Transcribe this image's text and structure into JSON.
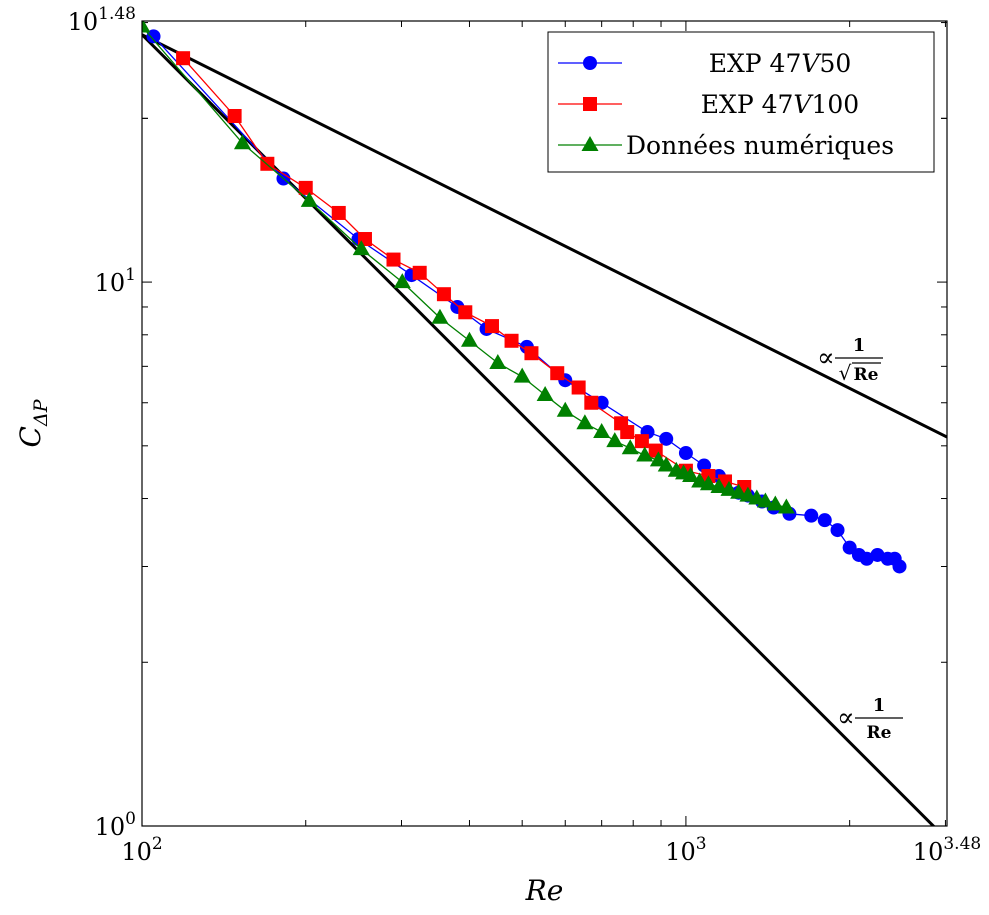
{
  "chart_data": {
    "type": "scatter",
    "title": "",
    "xlabel": "Re",
    "ylabel": "C_{ΔP}",
    "xscale": "log",
    "yscale": "log",
    "xlim": [
      100,
      3020
    ],
    "ylim": [
      1,
      30.2
    ],
    "grid": false,
    "legend_position": "top-right",
    "x_tick_labels": [
      {
        "value": 100,
        "base": "10",
        "exp": "2"
      },
      {
        "value": 1000,
        "base": "10",
        "exp": "3"
      },
      {
        "value": 3020,
        "base": "10",
        "exp": "3.48"
      }
    ],
    "y_tick_labels": [
      {
        "value": 1,
        "base": "10",
        "exp": "0"
      },
      {
        "value": 10,
        "base": "10",
        "exp": "1"
      },
      {
        "value": 30.2,
        "base": "10",
        "exp": "1.48"
      }
    ],
    "series": [
      {
        "name": "EXP 47V50",
        "legend_prefix": "EXP 47",
        "legend_italic": "V",
        "legend_suffix": "50",
        "color": "#0000ff",
        "marker": "circle",
        "x": [
          105,
          182,
          250,
          313,
          380,
          430,
          510,
          600,
          700,
          850,
          920,
          1000,
          1080,
          1150,
          1250,
          1300,
          1380,
          1450,
          1550,
          1700,
          1800,
          1900,
          2000,
          2080,
          2150,
          2250,
          2350,
          2420,
          2470
        ],
        "y": [
          28.3,
          15.5,
          12.0,
          10.3,
          9.0,
          8.2,
          7.6,
          6.6,
          6.0,
          5.3,
          5.15,
          4.85,
          4.6,
          4.4,
          4.1,
          4.05,
          3.95,
          3.85,
          3.75,
          3.72,
          3.65,
          3.5,
          3.25,
          3.15,
          3.1,
          3.15,
          3.1,
          3.1,
          3.0
        ]
      },
      {
        "name": "EXP 47V100",
        "legend_prefix": "EXP 47",
        "legend_italic": "V",
        "legend_suffix": "100",
        "color": "#ff0000",
        "marker": "square",
        "x": [
          119,
          148,
          170,
          200,
          230,
          257,
          290,
          324,
          359,
          393,
          440,
          478,
          520,
          580,
          635,
          670,
          760,
          780,
          830,
          880,
          1000,
          1100,
          1180,
          1280
        ],
        "y": [
          25.8,
          20.2,
          16.5,
          14.9,
          13.4,
          12.0,
          11.0,
          10.4,
          9.5,
          8.8,
          8.3,
          7.8,
          7.4,
          6.8,
          6.4,
          6.0,
          5.5,
          5.3,
          5.1,
          4.9,
          4.5,
          4.4,
          4.3,
          4.2
        ]
      },
      {
        "name": "Données numériques",
        "legend_prefix": "Données numériques",
        "legend_italic": "",
        "legend_suffix": "",
        "color": "#008000",
        "marker": "triangle",
        "x": [
          100,
          153,
          203,
          253,
          301,
          353,
          400,
          451,
          500,
          551,
          600,
          652,
          700,
          740,
          790,
          840,
          890,
          920,
          960,
          990,
          1020,
          1060,
          1100,
          1150,
          1200,
          1250,
          1300,
          1350,
          1400,
          1460,
          1530
        ],
        "y": [
          29.5,
          18.0,
          14.1,
          11.5,
          10.0,
          8.6,
          7.8,
          7.1,
          6.7,
          6.2,
          5.8,
          5.5,
          5.3,
          5.1,
          4.95,
          4.8,
          4.7,
          4.6,
          4.5,
          4.45,
          4.4,
          4.3,
          4.25,
          4.2,
          4.15,
          4.1,
          4.05,
          4.0,
          3.95,
          3.9,
          3.85
        ]
      }
    ],
    "reference_lines": [
      {
        "label_symbol": "∝",
        "numerator": "1",
        "denominator": "Re",
        "sqrt": true,
        "x": [
          100,
          3020
        ],
        "y": [
          28.5,
          5.19
        ]
      },
      {
        "label_symbol": "∝",
        "numerator": "1",
        "denominator": "Re",
        "sqrt": false,
        "x": [
          100,
          3020
        ],
        "y": [
          28.5,
          0.944
        ]
      }
    ]
  }
}
